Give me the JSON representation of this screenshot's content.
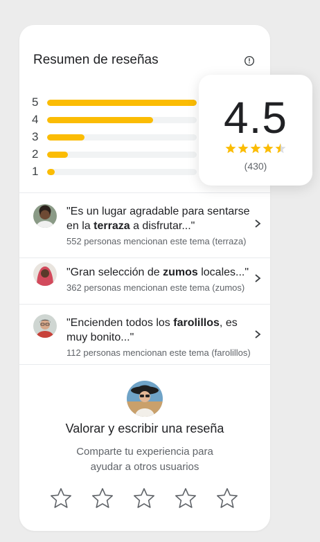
{
  "summary": {
    "title": "Resumen de reseñas",
    "bars": [
      {
        "label": "5",
        "fraction": 1.0
      },
      {
        "label": "4",
        "fraction": 0.71
      },
      {
        "label": "3",
        "fraction": 0.25
      },
      {
        "label": "2",
        "fraction": 0.14
      },
      {
        "label": "1",
        "fraction": 0.05
      }
    ],
    "rating": "4.5",
    "rating_stars": 4.5,
    "count": "(430)"
  },
  "topics": [
    {
      "pre": "\"Es un lugar agradable para sentarse en la ",
      "bold": "terraza",
      "post": " a disfrutar...\"",
      "mentions": "552 personas mencionan este tema (terraza)"
    },
    {
      "pre": "\"Gran selección de ",
      "bold": "zumos",
      "post": " locales...\"",
      "mentions": "362 personas mencionan este tema (zumos)"
    },
    {
      "pre": "\"Encienden todos los ",
      "bold": "farolillos",
      "post": ", es muy bonito...\"",
      "mentions": "112 personas mencionan este tema (farolillos)"
    }
  ],
  "cta": {
    "title": "Valorar y escribir una reseña",
    "subtitle_line1": "Comparte tu experiencia para",
    "subtitle_line2": "ayudar a otros usuarios",
    "star_count": 5
  },
  "colors": {
    "bar_fill": "#fbbc04",
    "bar_track": "#f1f3f4",
    "star_filled": "#fbbc04",
    "star_outline": "#5f6368"
  }
}
